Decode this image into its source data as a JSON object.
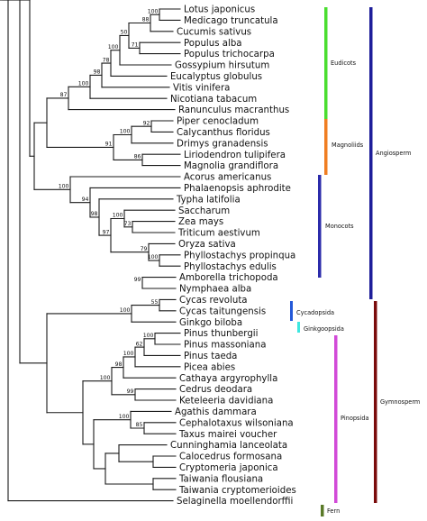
{
  "taxa": [
    "Lotus japonicus",
    "Medicago truncatula",
    "Cucumis sativus",
    "Populus alba",
    "Populus trichocarpa",
    "Gossypium hirsutum",
    "Eucalyptus globulus",
    "Vitis vinifera",
    "Nicotiana tabacum",
    "Ranunculus macranthus",
    "Piper cenocladum",
    "Calycanthus floridus",
    "Drimys granadensis",
    "Liriodendron tulipifera",
    "Magnolia grandiflora",
    "Acorus americanus",
    "Phalaenopsis aphrodite",
    "Typha latifolia",
    "Saccharum",
    "Zea mays",
    "Triticum aestivum",
    "Oryza sativa",
    "Phyllostachys propinqua",
    "Phyllostachys edulis",
    "Amborella trichopoda",
    "Nymphaea alba",
    "Cycas revoluta",
    "Cycas taitungensis",
    "Ginkgo biloba",
    "Pinus thunbergii",
    "Pinus massoniana",
    "Pinus taeda",
    "Picea abies",
    "Cathaya argyrophylla",
    "Cedrus deodara",
    "Keteleeria davidiana",
    "Agathis dammara",
    "Cephalotaxus wilsoniana",
    "Taxus mairei voucher",
    "Cunninghamia lanceolata",
    "Calocedrus formosana",
    "Cryptomeria japonica",
    "Taiwania flousiana",
    "Taiwania cryptomerioides",
    "Selaginella moellendorffii"
  ],
  "bootstrap": [
    "100",
    "88",
    "71",
    "50",
    "100",
    "78",
    "98",
    "100",
    "87",
    "92",
    "100",
    "86",
    "91",
    "94",
    "98",
    "97",
    "100",
    "73",
    "79",
    "100",
    "100",
    "99",
    "100",
    "55",
    "100",
    "62",
    "100",
    "100",
    "98",
    "99",
    "100",
    "85",
    "100"
  ],
  "groups": {
    "eudicots": "Eudicots",
    "magnoliids": "Magnoliids",
    "monocots": "Monocots",
    "angiosperm": "Angiosperm",
    "cycadopsida": "Cycadopsida",
    "ginkgoopsida": "Ginkgoopsida",
    "pinopsida": "Pinopsida",
    "gymnosperm": "Gymnosperm",
    "fern": "Fern"
  },
  "colors": {
    "eudicots": "#4ade30",
    "magnoliids": "#f07e22",
    "monocots": "#2b2baa",
    "angiosperm": "#1e1e9a",
    "cycadopsida": "#2358d8",
    "ginkgoopsida": "#3ee7e0",
    "pinopsida": "#d24ad8",
    "gymnosperm": "#7a0b0b",
    "fern": "#5a7a28"
  }
}
